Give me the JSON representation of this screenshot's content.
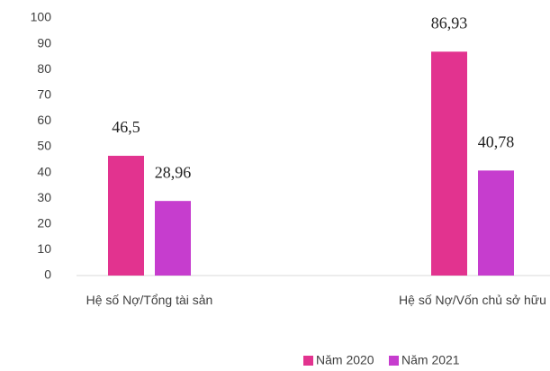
{
  "chart_data": {
    "type": "bar",
    "categories": [
      "Hệ số Nợ/Tổng tài sản",
      "Hệ số Nợ/Vốn chủ sở hữu"
    ],
    "series": [
      {
        "name": "Năm 2020",
        "color": "#e2338f",
        "values": [
          46.5,
          86.93
        ],
        "value_labels": [
          "46,5",
          "86,93"
        ]
      },
      {
        "name": "Năm 2021",
        "color": "#c63dce",
        "values": [
          28.96,
          40.78
        ],
        "value_labels": [
          "28,96",
          "40,78"
        ]
      }
    ],
    "ylim": [
      0,
      100
    ],
    "yticks": [
      0,
      10,
      20,
      30,
      40,
      50,
      60,
      70,
      80,
      90,
      100
    ],
    "grid": false,
    "legend": "bottom"
  }
}
